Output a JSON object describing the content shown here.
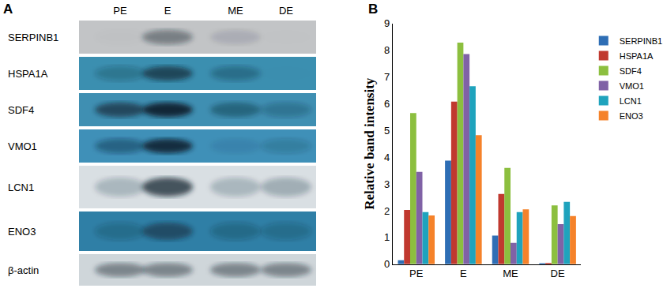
{
  "panel_labels": [
    "A",
    "B"
  ],
  "blot": {
    "lanes": [
      "PE",
      "E",
      "ME",
      "DE"
    ],
    "rows": [
      "SERPINB1",
      "HSPA1A",
      "SDF4",
      "VMO1",
      "LCN1",
      "ENO3",
      "β-actin"
    ]
  },
  "chart_data": {
    "type": "bar",
    "categories": [
      "PE",
      "E",
      "ME",
      "DE"
    ],
    "y_label": "Relative band intensity",
    "ylim": [
      0,
      9
    ],
    "yticks": [
      0,
      1,
      2,
      3,
      4,
      5,
      6,
      7,
      8,
      9
    ],
    "grid": false,
    "legend": "right",
    "series": [
      {
        "name": "SERPINB1",
        "color": "#2e6eb5",
        "values": [
          0.15,
          3.87,
          1.07,
          0.02
        ]
      },
      {
        "name": "HSPA1A",
        "color": "#c0392f",
        "values": [
          2.03,
          6.08,
          2.63,
          0.05
        ]
      },
      {
        "name": "SDF4",
        "color": "#8cbf3f",
        "values": [
          5.65,
          8.28,
          3.6,
          2.2
        ]
      },
      {
        "name": "VMO1",
        "color": "#8062a6",
        "values": [
          3.45,
          7.85,
          0.8,
          1.5
        ]
      },
      {
        "name": "LCN1",
        "color": "#1fa3bd",
        "values": [
          1.95,
          6.65,
          1.95,
          2.33
        ]
      },
      {
        "name": "ENO3",
        "color": "#f5822a",
        "values": [
          1.82,
          4.82,
          2.05,
          1.8
        ]
      }
    ]
  }
}
